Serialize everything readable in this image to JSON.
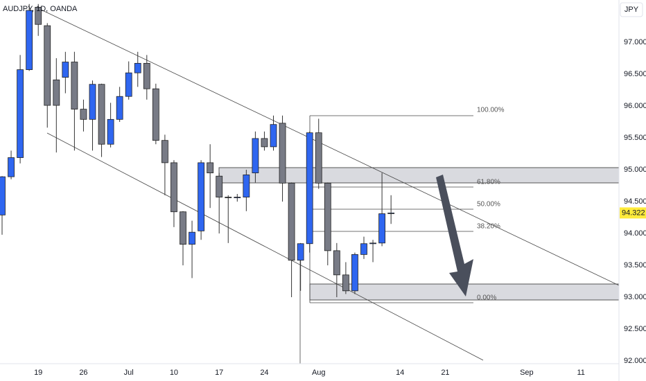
{
  "chart_data": {
    "type": "candlestick",
    "title": "AUDJPY, 1D, OANDA",
    "currency_button": "JPY",
    "x": [
      0,
      1,
      2,
      3,
      4,
      5,
      6,
      7,
      8,
      9,
      10,
      11,
      12,
      13,
      14,
      15,
      16,
      17,
      18,
      19,
      20,
      21,
      22,
      23,
      24,
      25,
      26,
      27,
      28,
      29,
      30,
      31,
      32,
      33,
      34,
      35,
      36,
      37,
      38,
      39,
      40,
      41,
      42,
      43
    ],
    "open": [
      94.29,
      94.89,
      95.19,
      96.57,
      97.55,
      97.26,
      96.41,
      96.45,
      96.69,
      95.95,
      95.79,
      96.34,
      95.4,
      95.79,
      96.15,
      96.52,
      96.67,
      96.27,
      95.46,
      95.11,
      94.34,
      93.83,
      94.04,
      95.11,
      94.9,
      94.57,
      94.56,
      94.57,
      94.95,
      95.49,
      95.36,
      95.73,
      94.79,
      93.58,
      93.84,
      95.58,
      94.79,
      93.73,
      93.35,
      93.1,
      93.67,
      93.84,
      93.85,
      94.32
    ],
    "high": [
      94.9,
      95.3,
      96.8,
      97.6,
      97.6,
      97.3,
      96.75,
      96.85,
      96.85,
      96.1,
      96.4,
      96.35,
      96.05,
      96.3,
      96.7,
      96.85,
      96.8,
      96.35,
      95.55,
      95.15,
      94.35,
      94.2,
      95.15,
      95.4,
      94.95,
      94.6,
      94.62,
      95.0,
      95.6,
      95.6,
      95.85,
      95.85,
      94.8,
      93.85,
      95.6,
      95.8,
      94.8,
      93.85,
      93.55,
      93.7,
      93.95,
      93.9,
      94.95,
      94.6
    ],
    "low": [
      93.98,
      94.85,
      95.1,
      96.55,
      97.1,
      95.66,
      95.27,
      96.2,
      95.3,
      95.6,
      95.3,
      95.2,
      95.35,
      95.75,
      96.1,
      96.3,
      96.1,
      95.4,
      94.6,
      94.1,
      93.5,
      93.3,
      93.9,
      94.4,
      94.0,
      93.85,
      94.5,
      94.35,
      94.8,
      95.3,
      95.3,
      94.5,
      93.0,
      93.1,
      93.7,
      94.7,
      93.5,
      93.0,
      93.05,
      93.05,
      93.6,
      93.55,
      93.8,
      94.15
    ],
    "close": [
      94.89,
      95.19,
      96.57,
      97.5,
      97.28,
      96.01,
      96.01,
      96.69,
      95.95,
      95.79,
      96.34,
      95.4,
      95.79,
      96.15,
      96.52,
      96.67,
      96.27,
      95.46,
      95.11,
      94.34,
      93.83,
      94.02,
      95.11,
      94.95,
      94.57,
      94.56,
      94.57,
      94.92,
      95.49,
      95.36,
      95.71,
      94.79,
      93.58,
      93.84,
      95.58,
      94.79,
      93.73,
      93.35,
      93.1,
      93.67,
      93.84,
      93.85,
      94.31,
      94.322
    ],
    "up_color": "#2f66f0",
    "down_color": "#787b86",
    "last_label": "94.322",
    "last_label_color": "#ffeb3b",
    "xlim": [
      -0.23,
      68.2
    ],
    "xticks": [
      {
        "value": 4,
        "label": "19"
      },
      {
        "value": 9,
        "label": "26"
      },
      {
        "value": 14,
        "label": "Jul"
      },
      {
        "value": 19,
        "label": "10"
      },
      {
        "value": 24,
        "label": "17"
      },
      {
        "value": 29,
        "label": "24"
      },
      {
        "value": 35,
        "label": "Aug"
      },
      {
        "value": 44,
        "label": "14"
      },
      {
        "value": 49,
        "label": "21"
      },
      {
        "value": 58,
        "label": "Sep"
      },
      {
        "value": 64,
        "label": "11"
      }
    ],
    "ylim": [
      91.957,
      97.663
    ],
    "yticks": [
      {
        "value": 92,
        "label": "92.000"
      },
      {
        "value": 92.5,
        "label": "92.500"
      },
      {
        "value": 93,
        "label": "93.000"
      },
      {
        "value": 93.5,
        "label": "93.500"
      },
      {
        "value": 94,
        "label": "94.000"
      },
      {
        "value": 94.5,
        "label": "94.500"
      },
      {
        "value": 95,
        "label": "95.000"
      },
      {
        "value": 95.5,
        "label": "95.500"
      },
      {
        "value": 96,
        "label": "96.000"
      },
      {
        "value": 96.5,
        "label": "96.500"
      },
      {
        "value": 97,
        "label": "97.000"
      }
    ],
    "grid": false,
    "fib_labels": [
      "100.00%",
      "61.80%",
      "50.00%",
      "38.20%",
      "0.00%"
    ]
  }
}
